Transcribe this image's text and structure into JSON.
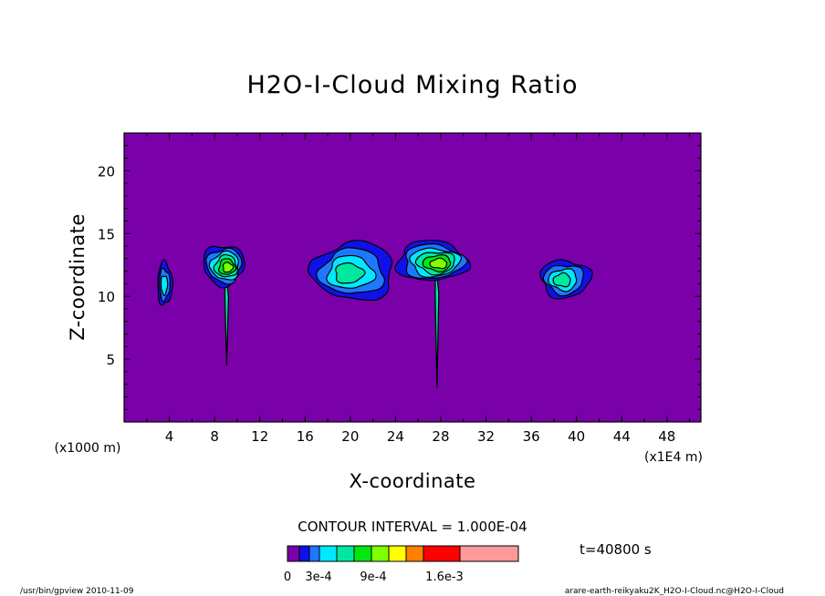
{
  "chart_data": {
    "type": "contour",
    "title": "H2O-I-Cloud Mixing Ratio",
    "xlabel": "X-coordinate",
    "ylabel": "Z-coordinate",
    "x_unit_label": "(x1000 m)",
    "x_scale_label": "(x1E4 m)",
    "xlim": [
      0,
      51
    ],
    "ylim": [
      0,
      23
    ],
    "x_ticks": [
      4,
      8,
      12,
      16,
      20,
      24,
      28,
      32,
      36,
      40,
      44,
      48
    ],
    "y_ticks": [
      5,
      10,
      15,
      20
    ],
    "background_color": "#7a00aa",
    "contour_interval_label": "CONTOUR INTERVAL = 1.000E-04",
    "time_label": "t=40800 s",
    "colorbar": {
      "colors": [
        "#7a00aa",
        "#1010e8",
        "#1e78ff",
        "#00e8ff",
        "#00e8a0",
        "#00e810",
        "#80ff00",
        "#ffff00",
        "#ff8000",
        "#ff0000",
        "#ff9a9a"
      ],
      "tick_labels": [
        "0",
        "3e-4",
        "9e-4",
        "1.6e-3"
      ]
    },
    "cells": [
      {
        "x": 3.6,
        "z": 11.0,
        "w": 1.3,
        "h": 3.4,
        "max_level": 3
      },
      {
        "x": 8.8,
        "z": 12.5,
        "w": 3.6,
        "h": 3.2,
        "max_level": 6,
        "stem": true
      },
      {
        "x": 20.3,
        "z": 12.0,
        "w": 7.2,
        "h": 4.6,
        "max_level": 4
      },
      {
        "x": 27.2,
        "z": 12.8,
        "w": 6.2,
        "h": 3.2,
        "max_level": 6,
        "stem": true
      },
      {
        "x": 39.0,
        "z": 11.4,
        "w": 4.4,
        "h": 3.0,
        "max_level": 4
      }
    ]
  },
  "footer": {
    "left": "/usr/bin/gpview   2010-11-09",
    "right": "arare-earth-reikyaku2K_H2O-I-Cloud.nc@H2O-I-Cloud"
  }
}
